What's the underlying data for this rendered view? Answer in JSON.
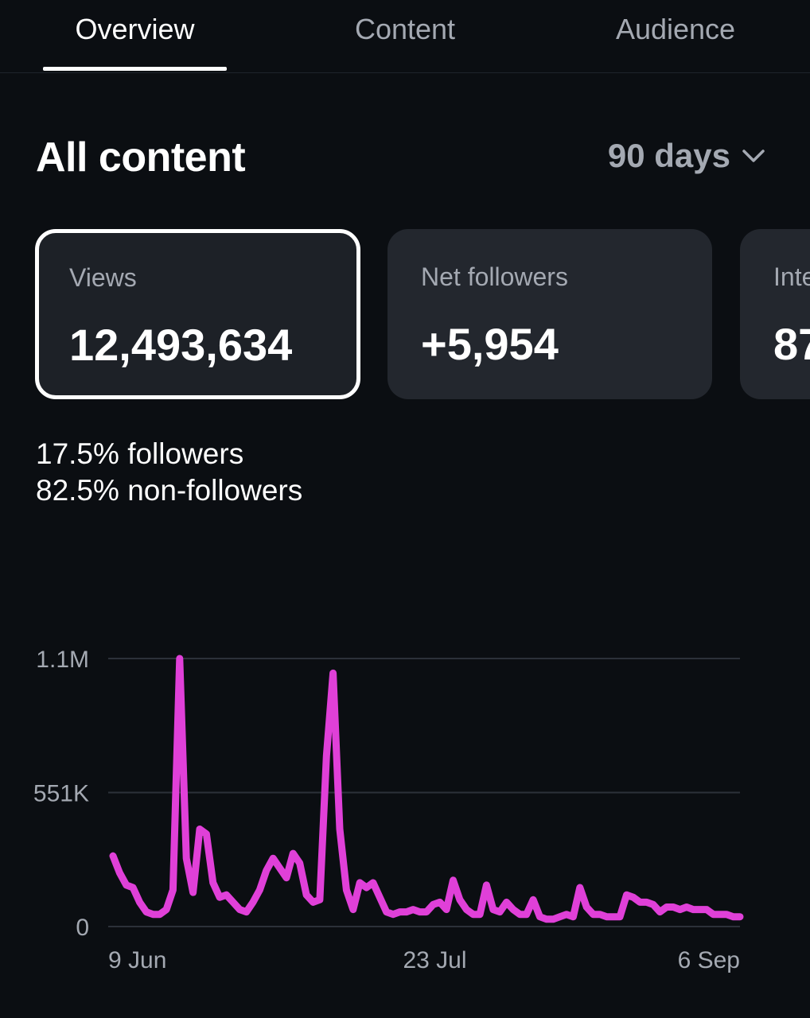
{
  "tabs": [
    {
      "label": "Overview",
      "active": true
    },
    {
      "label": "Content",
      "active": false
    },
    {
      "label": "Audience",
      "active": false
    }
  ],
  "section": {
    "title": "All content",
    "range_label": "90 days",
    "range_icon": "chevron-down-icon"
  },
  "metrics": [
    {
      "label": "Views",
      "value": "12,493,634",
      "selected": true
    },
    {
      "label": "Net followers",
      "value": "+5,954",
      "selected": false
    },
    {
      "label": "Inte",
      "value": "87",
      "selected": false
    }
  ],
  "audience_split": {
    "followers_pct": "17.5%",
    "followers_label": "followers",
    "non_followers_pct": "82.5%",
    "non_followers_label": "non-followers"
  },
  "chart_data": {
    "type": "line",
    "color": "#e040d8",
    "x_start": "2024-06-04",
    "y_ticks": [
      "1.1M",
      "551K",
      "0"
    ],
    "ylim": [
      0,
      1100000
    ],
    "x_tick_labels": [
      {
        "label": "9 Jun",
        "date": "2024-06-09"
      },
      {
        "label": "23 Jul",
        "date": "2024-07-23"
      },
      {
        "label": "6 Sep",
        "date": "2024-09-06"
      }
    ],
    "x_first_date": "2024-06-04",
    "x_last_date": "2024-09-07",
    "values": [
      290000,
      220000,
      170000,
      160000,
      100000,
      60000,
      50000,
      50000,
      70000,
      150000,
      1100000,
      280000,
      140000,
      400000,
      380000,
      180000,
      120000,
      130000,
      100000,
      70000,
      60000,
      100000,
      150000,
      230000,
      280000,
      240000,
      200000,
      300000,
      260000,
      130000,
      100000,
      110000,
      700000,
      1040000,
      400000,
      150000,
      70000,
      180000,
      160000,
      180000,
      120000,
      60000,
      50000,
      60000,
      60000,
      70000,
      60000,
      60000,
      90000,
      100000,
      70000,
      190000,
      110000,
      70000,
      50000,
      50000,
      170000,
      70000,
      60000,
      100000,
      70000,
      50000,
      50000,
      110000,
      40000,
      30000,
      30000,
      40000,
      50000,
      40000,
      160000,
      80000,
      50000,
      50000,
      40000,
      40000,
      40000,
      130000,
      120000,
      100000,
      100000,
      90000,
      60000,
      80000,
      80000,
      70000,
      80000,
      70000,
      70000,
      70000,
      50000,
      50000,
      50000,
      40000,
      40000
    ]
  }
}
